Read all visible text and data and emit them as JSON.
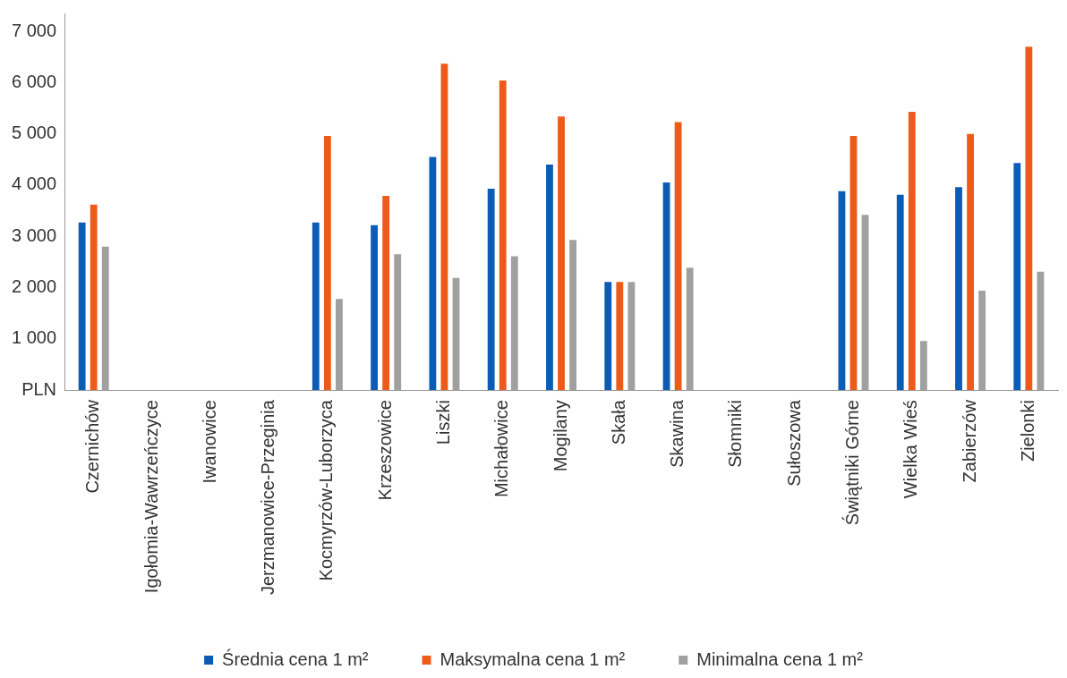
{
  "chart_data": {
    "type": "bar",
    "categories": [
      "Czernichów",
      "Igołomia-Wawrzeńczyce",
      "Iwanowice",
      "Jerzmanowice-Przeginia",
      "Kocmyrzów-Luborzyca",
      "Krzeszowice",
      "Liszki",
      "Michałowice",
      "Mogilany",
      "Skała",
      "Skawina",
      "Słomniki",
      "Sułoszowa",
      "Świątniki Górne",
      "Wielka Wieś",
      "Zabierzów",
      "Zielonki"
    ],
    "series": [
      {
        "name": "Średnia cena 1 m²",
        "color": "#0a5cb5",
        "values": [
          3270,
          null,
          null,
          null,
          3270,
          3220,
          4550,
          3930,
          4400,
          2110,
          4050,
          null,
          null,
          3880,
          3810,
          3960,
          4430
        ]
      },
      {
        "name": "Maksymalna cena 1 m²",
        "color": "#ee5a1a",
        "values": [
          3620,
          null,
          null,
          null,
          4960,
          3790,
          6370,
          6040,
          5340,
          2110,
          5230,
          null,
          null,
          4960,
          5430,
          5000,
          6700
        ]
      },
      {
        "name": "Minimalna cena 1 m²",
        "color": "#a0a0a0",
        "values": [
          2800,
          null,
          null,
          null,
          1780,
          2650,
          2190,
          2610,
          2930,
          2110,
          2390,
          null,
          null,
          3420,
          960,
          1940,
          2310
        ]
      }
    ],
    "ylim": [
      0,
      7350
    ],
    "yticks": [
      {
        "value": 0,
        "label": "PLN"
      },
      {
        "value": 1000,
        "label": "1 000"
      },
      {
        "value": 2000,
        "label": "2 000"
      },
      {
        "value": 3000,
        "label": "3 000"
      },
      {
        "value": 4000,
        "label": "4 000"
      },
      {
        "value": 5000,
        "label": "5 000"
      },
      {
        "value": 6000,
        "label": "6 000"
      },
      {
        "value": 7000,
        "label": "7 000"
      }
    ],
    "legend": "bottom"
  }
}
